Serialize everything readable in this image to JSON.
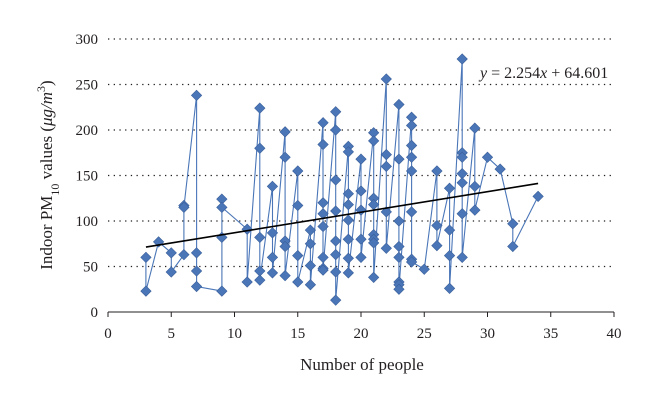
{
  "chart_data": {
    "type": "scatter",
    "title": "",
    "xlabel": "Number of people",
    "ylabel_parts": {
      "main": "Indoor PM",
      "sub": "10",
      "mid": " values (",
      "unit": "μg/m",
      "sup": "3",
      "end": ")"
    },
    "xlim": [
      0,
      40
    ],
    "ylim": [
      0,
      300
    ],
    "xticks": [
      0,
      5,
      10,
      15,
      20,
      25,
      30,
      35,
      40
    ],
    "yticks": [
      0,
      50,
      100,
      150,
      200,
      250,
      300
    ],
    "grid": "horizontal dotted",
    "series": [
      {
        "marker": "diamond",
        "connected": true,
        "color": "#4a76b8",
        "points": [
          [
            3,
            60
          ],
          [
            3,
            23
          ],
          [
            4,
            77
          ],
          [
            5,
            65
          ],
          [
            5,
            44
          ],
          [
            6,
            63
          ],
          [
            6,
            117
          ],
          [
            6,
            115
          ],
          [
            7,
            238
          ],
          [
            7,
            65
          ],
          [
            7,
            45
          ],
          [
            7,
            28
          ],
          [
            9,
            23
          ],
          [
            9,
            82
          ],
          [
            9,
            124
          ],
          [
            9,
            115
          ],
          [
            11,
            91
          ],
          [
            11,
            33
          ],
          [
            12,
            224
          ],
          [
            12,
            180
          ],
          [
            12,
            82
          ],
          [
            12,
            45
          ],
          [
            12,
            35
          ],
          [
            13,
            138
          ],
          [
            13,
            87
          ],
          [
            13,
            60
          ],
          [
            13,
            43
          ],
          [
            14,
            198
          ],
          [
            14,
            170
          ],
          [
            14,
            78
          ],
          [
            14,
            72
          ],
          [
            14,
            40
          ],
          [
            15,
            155
          ],
          [
            15,
            117
          ],
          [
            15,
            62
          ],
          [
            15,
            33
          ],
          [
            16,
            90
          ],
          [
            16,
            75
          ],
          [
            16,
            51
          ],
          [
            16,
            30
          ],
          [
            17,
            208
          ],
          [
            17,
            184
          ],
          [
            17,
            120
          ],
          [
            17,
            108
          ],
          [
            17,
            94
          ],
          [
            17,
            60
          ],
          [
            17,
            48
          ],
          [
            17,
            46
          ],
          [
            18,
            220
          ],
          [
            18,
            200
          ],
          [
            18,
            145
          ],
          [
            18,
            111
          ],
          [
            18,
            78
          ],
          [
            18,
            63
          ],
          [
            18,
            44
          ],
          [
            18,
            13
          ],
          [
            19,
            182
          ],
          [
            19,
            176
          ],
          [
            19,
            130
          ],
          [
            19,
            118
          ],
          [
            19,
            101
          ],
          [
            19,
            80
          ],
          [
            19,
            59
          ],
          [
            19,
            43
          ],
          [
            20,
            168
          ],
          [
            20,
            133
          ],
          [
            20,
            112
          ],
          [
            20,
            80
          ],
          [
            20,
            60
          ],
          [
            21,
            197
          ],
          [
            21,
            188
          ],
          [
            21,
            125
          ],
          [
            21,
            118
          ],
          [
            21,
            85
          ],
          [
            21,
            80
          ],
          [
            21,
            76
          ],
          [
            21,
            38
          ],
          [
            22,
            256
          ],
          [
            22,
            173
          ],
          [
            22,
            160
          ],
          [
            22,
            110
          ],
          [
            22,
            70
          ],
          [
            23,
            228
          ],
          [
            23,
            168
          ],
          [
            23,
            100
          ],
          [
            23,
            72
          ],
          [
            23,
            60
          ],
          [
            23,
            33
          ],
          [
            23,
            30
          ],
          [
            23,
            25
          ],
          [
            24,
            214
          ],
          [
            24,
            205
          ],
          [
            24,
            183
          ],
          [
            24,
            170
          ],
          [
            24,
            155
          ],
          [
            24,
            110
          ],
          [
            24,
            58
          ],
          [
            24,
            55
          ],
          [
            25,
            47
          ],
          [
            26,
            155
          ],
          [
            26,
            95
          ],
          [
            26,
            73
          ],
          [
            27,
            136
          ],
          [
            27,
            90
          ],
          [
            27,
            62
          ],
          [
            27,
            26
          ],
          [
            28,
            278
          ],
          [
            28,
            175
          ],
          [
            28,
            170
          ],
          [
            28,
            152
          ],
          [
            28,
            142
          ],
          [
            28,
            108
          ],
          [
            28,
            60
          ],
          [
            29,
            202
          ],
          [
            29,
            138
          ],
          [
            29,
            112
          ],
          [
            30,
            170
          ],
          [
            31,
            157
          ],
          [
            32,
            97
          ],
          [
            32,
            72
          ],
          [
            34,
            127
          ]
        ]
      }
    ],
    "trendline": {
      "slope": 2.254,
      "intercept": 64.601,
      "x_range": [
        3,
        34
      ],
      "label": "y = 2.254x + 64.601"
    }
  }
}
